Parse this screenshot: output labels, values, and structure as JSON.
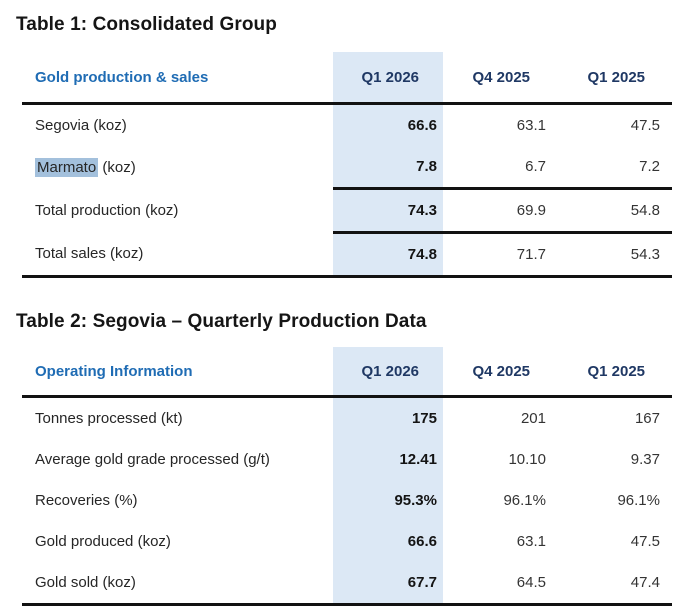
{
  "colors": {
    "page_background": "#ffffff",
    "title_text": "#151515",
    "row_header_blue": "#1f6cb4",
    "column_header_navy": "#1f3864",
    "highlight_column_bg": "#dce8f5",
    "text_selection_bg": "#a3c0dc",
    "rule_black": "#121212"
  },
  "table1": {
    "title": "Table 1: Consolidated Group",
    "row_header": "Gold production & sales",
    "columns": [
      "Q1 2026",
      "Q4 2025",
      "Q1 2025"
    ],
    "rows": [
      {
        "label": "Segovia (koz)",
        "values": [
          "66.6",
          "63.1",
          "47.5"
        ]
      },
      {
        "label_selected": "Marmato",
        "label_rest": " (koz)",
        "values": [
          "7.8",
          "6.7",
          "7.2"
        ]
      },
      {
        "label": "Total production (koz)",
        "values": [
          "74.3",
          "69.9",
          "54.8"
        ]
      },
      {
        "label": "Total sales (koz)",
        "values": [
          "74.8",
          "71.7",
          "54.3"
        ]
      }
    ]
  },
  "table2": {
    "title": "Table 2: Segovia – Quarterly Production Data",
    "row_header": "Operating Information",
    "columns": [
      "Q1 2026",
      "Q4 2025",
      "Q1 2025"
    ],
    "rows": [
      {
        "label": "Tonnes processed (kt)",
        "values": [
          "175",
          "201",
          "167"
        ]
      },
      {
        "label": "Average gold grade processed (g/t)",
        "values": [
          "12.41",
          "10.10",
          "9.37"
        ]
      },
      {
        "label": "Recoveries (%)",
        "values": [
          "95.3%",
          "96.1%",
          "96.1%"
        ]
      },
      {
        "label": "Gold produced (koz)",
        "values": [
          "66.6",
          "63.1",
          "47.5"
        ]
      },
      {
        "label": "Gold sold (koz)",
        "values": [
          "67.7",
          "64.5",
          "47.4"
        ]
      }
    ]
  }
}
